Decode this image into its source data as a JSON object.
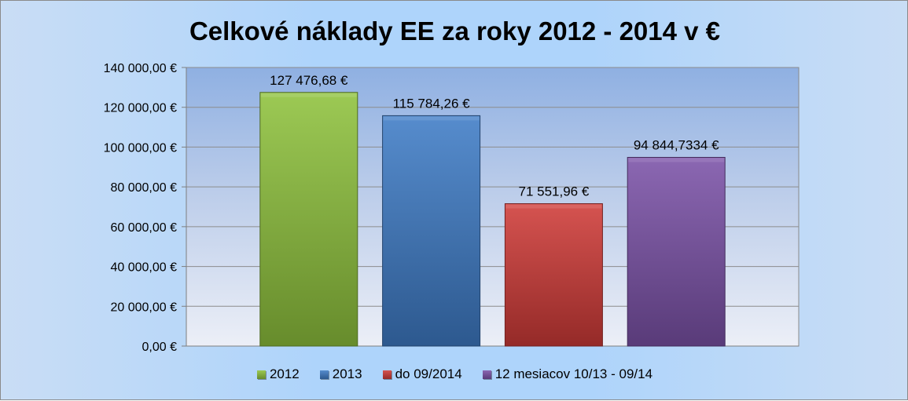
{
  "chart_data": {
    "type": "bar",
    "title": "Celkové náklady EE za roky 2012 - 2014  v €",
    "categories": [
      "2012",
      "2013",
      "do 09/2014",
      "12 mesiacov 10/13 - 09/14"
    ],
    "values": [
      127476.68,
      115784.26,
      71551.96,
      94844.7334
    ],
    "data_labels": [
      "127 476,68 €",
      "115 784,26 €",
      "71 551,96 €",
      "94 844,7334 €"
    ],
    "colors": [
      "#8fc23d",
      "#3f7cc6",
      "#cf3b38",
      "#7b52a8"
    ],
    "ylim": [
      0,
      140000
    ],
    "yticks": [
      0,
      20000,
      40000,
      60000,
      80000,
      100000,
      120000,
      140000
    ],
    "ytick_labels": [
      "0,00 €",
      "20 000,00 €",
      "40 000,00 €",
      "60 000,00 €",
      "80 000,00 €",
      "100 000,00 €",
      "120 000,00 €",
      "140 000,00 €"
    ],
    "grid": true,
    "legend": "bottom",
    "xlabel": "",
    "ylabel": ""
  }
}
